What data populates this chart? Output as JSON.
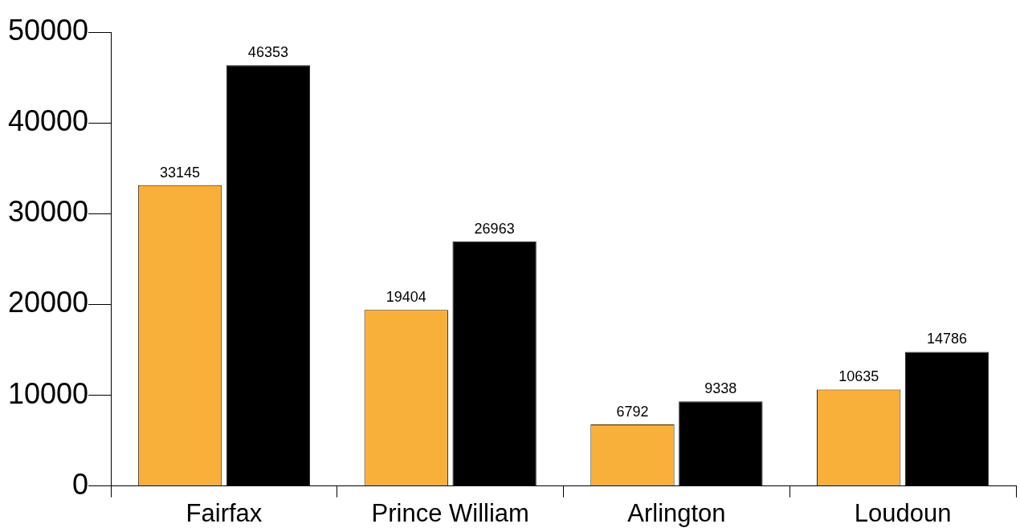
{
  "chart_data": {
    "type": "bar",
    "categories": [
      "Fairfax",
      "Prince William",
      "Arlington",
      "Loudoun"
    ],
    "series": [
      {
        "color": "#f9b03b",
        "values": [
          33145,
          19404,
          6792,
          10635
        ]
      },
      {
        "color": "#000000",
        "values": [
          46353,
          26963,
          9338,
          14786
        ]
      }
    ],
    "ylim": [
      0,
      50000
    ],
    "yticks": [
      0,
      10000,
      20000,
      30000,
      40000,
      50000
    ],
    "grid": false,
    "legend": false,
    "data_labels": true
  }
}
